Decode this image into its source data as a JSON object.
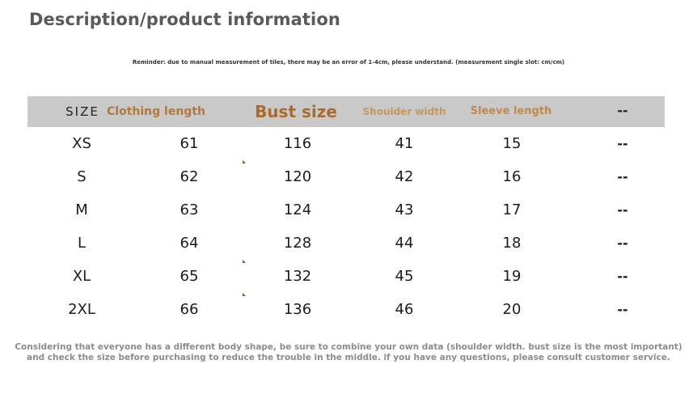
{
  "title": "Description/product information",
  "reminder": "Reminder: due to manual measurement of tiles, there may be an error of 1-4cm, please understand. (measurement single slot: cm/cm)",
  "table": {
    "headers": [
      "SIZE",
      "Clothing length",
      "Bust size",
      "Shoulder width",
      "Sleeve length",
      "--"
    ],
    "rows": [
      [
        "XS",
        "61",
        "116",
        "41",
        "15",
        "--"
      ],
      [
        "S",
        "62",
        "120",
        "42",
        "16",
        "--"
      ],
      [
        "M",
        "63",
        "124",
        "43",
        "17",
        "--"
      ],
      [
        "L",
        "64",
        "128",
        "44",
        "18",
        "--"
      ],
      [
        "XL",
        "65",
        "132",
        "45",
        "19",
        "--"
      ],
      [
        "2XL",
        "66",
        "136",
        "46",
        "20",
        "--"
      ]
    ]
  },
  "footer": {
    "line1": "Considering that everyone has a different body shape, be sure to combine your own data (shoulder width. bust size is the most important)",
    "line2": "and check the size before purchasing to reduce the trouble in the middle. if you have any questions, please consult customer service."
  },
  "colors": {
    "header_bg": "#c9c9c9",
    "header_accent": "#b07a3e",
    "text_gray": "#8c8c8c"
  }
}
